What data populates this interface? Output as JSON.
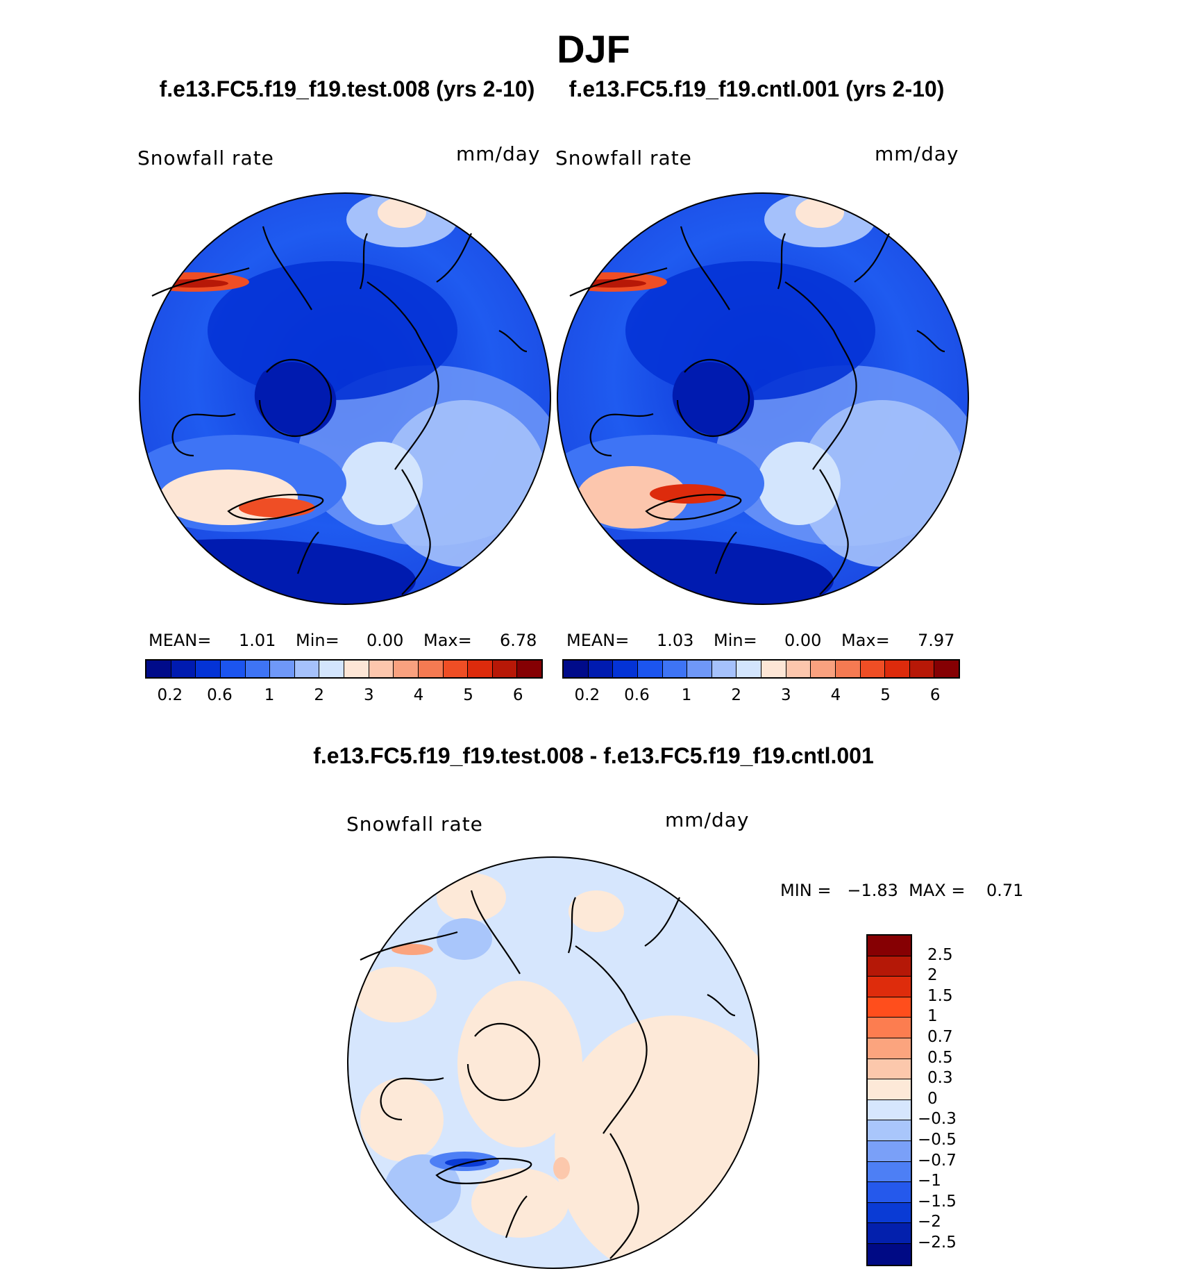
{
  "title": "DJF",
  "panel_left": {
    "case": "f.e13.FC5.f19_f19.test.008 (yrs 2-10)",
    "variable": "Snowfall rate",
    "units": "mm/day",
    "mean_label": "MEAN=",
    "mean": "1.01",
    "min_label": "Min=",
    "min": "0.00",
    "max_label": "Max=",
    "max": "6.78"
  },
  "panel_right": {
    "case": "f.e13.FC5.f19_f19.cntl.001 (yrs 2-10)",
    "variable": "Snowfall rate",
    "units": "mm/day",
    "mean_label": "MEAN=",
    "mean": "1.03",
    "min_label": "Min=",
    "min": "0.00",
    "max_label": "Max=",
    "max": "7.97"
  },
  "panel_diff": {
    "title": "f.e13.FC5.f19_f19.test.008 - f.e13.FC5.f19_f19.cntl.001",
    "variable": "Snowfall rate",
    "units": "mm/day",
    "stats": "MIN =   −1.83  MAX =    0.71"
  },
  "colorbar_abs": {
    "colors": [
      "#000b8a",
      "#001bb0",
      "#0433d6",
      "#1c55ef",
      "#3e74f5",
      "#6f98f8",
      "#a5c1fb",
      "#d3e5fd",
      "#fde6d6",
      "#fcc6ad",
      "#f9a17f",
      "#f57a52",
      "#ef4e25",
      "#dd2b0c",
      "#b71807",
      "#850003"
    ],
    "ticks": [
      "0.2",
      "0.6",
      "1",
      "2",
      "3",
      "4",
      "5",
      "6"
    ]
  },
  "colorbar_diff": {
    "colors": [
      "#860003",
      "#b51807",
      "#de2c0c",
      "#ff4e1c",
      "#fc7d50",
      "#fba47e",
      "#fcc8ac",
      "#fde9d8",
      "#d6e6fd",
      "#a9c6fb",
      "#7aa0f8",
      "#4d7ff5",
      "#2559ec",
      "#0a3bd5",
      "#0320ad",
      "#000a85"
    ],
    "ticks": [
      "2.5",
      "2",
      "1.5",
      "1",
      "0.7",
      "0.5",
      "0.3",
      "0",
      "−0.3",
      "−0.5",
      "−0.7",
      "−1",
      "−1.5",
      "−2",
      "−2.5"
    ]
  }
}
